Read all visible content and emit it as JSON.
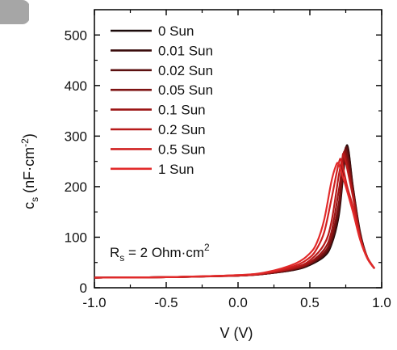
{
  "chart_data": {
    "type": "line",
    "xlabel": "V (V)",
    "ylabel": "cs (nF·cm⁻²)",
    "ylabel_parts": {
      "main": "c",
      "sub": "s",
      "unit_open": " (nF·cm",
      "sup": "-2",
      "unit_close": ")"
    },
    "xlim": [
      -1.0,
      1.0
    ],
    "ylim": [
      0,
      550
    ],
    "xticks": [
      -1.0,
      -0.5,
      0.0,
      0.5,
      1.0
    ],
    "xtick_labels": [
      "-1.0",
      "-0.5",
      "0.0",
      "0.5",
      "1.0"
    ],
    "yticks": [
      0,
      100,
      200,
      300,
      400,
      500
    ],
    "ytick_labels": [
      "0",
      "100",
      "200",
      "300",
      "400",
      "500"
    ],
    "grid": false,
    "legend_position": "top-center",
    "annotation": {
      "main": "R",
      "sub": "s",
      "rest": " = 2 Ohm·cm",
      "sup": "2"
    },
    "corner_mark": "panel-tab-grey",
    "series": [
      {
        "name": "0 Sun",
        "color": "#1a0a0a",
        "points": [
          [
            -1.0,
            20
          ],
          [
            -0.5,
            21
          ],
          [
            0.0,
            24
          ],
          [
            0.2,
            28
          ],
          [
            0.4,
            36
          ],
          [
            0.5,
            45
          ],
          [
            0.6,
            62
          ],
          [
            0.65,
            85
          ],
          [
            0.7,
            140
          ],
          [
            0.73,
            215
          ],
          [
            0.76,
            282
          ],
          [
            0.8,
            200
          ],
          [
            0.85,
            110
          ],
          [
            0.9,
            60
          ],
          [
            0.95,
            38
          ]
        ]
      },
      {
        "name": "0.01 Sun",
        "color": "#3a0c0c",
        "points": [
          [
            -1.0,
            20
          ],
          [
            -0.5,
            21
          ],
          [
            0.0,
            24
          ],
          [
            0.2,
            28
          ],
          [
            0.4,
            36
          ],
          [
            0.5,
            46
          ],
          [
            0.6,
            64
          ],
          [
            0.65,
            88
          ],
          [
            0.7,
            145
          ],
          [
            0.73,
            220
          ],
          [
            0.76,
            280
          ],
          [
            0.8,
            198
          ],
          [
            0.85,
            108
          ],
          [
            0.9,
            60
          ],
          [
            0.95,
            38
          ]
        ]
      },
      {
        "name": "0.02 Sun",
        "color": "#5c1010",
        "points": [
          [
            -1.0,
            20
          ],
          [
            -0.5,
            21
          ],
          [
            0.0,
            24
          ],
          [
            0.2,
            28
          ],
          [
            0.4,
            37
          ],
          [
            0.5,
            47
          ],
          [
            0.6,
            66
          ],
          [
            0.65,
            92
          ],
          [
            0.7,
            152
          ],
          [
            0.73,
            226
          ],
          [
            0.755,
            278
          ],
          [
            0.8,
            195
          ],
          [
            0.85,
            106
          ],
          [
            0.9,
            60
          ],
          [
            0.95,
            38
          ]
        ]
      },
      {
        "name": "0.05 Sun",
        "color": "#7d1212",
        "points": [
          [
            -1.0,
            20
          ],
          [
            -0.5,
            21
          ],
          [
            0.0,
            24
          ],
          [
            0.2,
            28
          ],
          [
            0.4,
            38
          ],
          [
            0.5,
            48
          ],
          [
            0.6,
            70
          ],
          [
            0.65,
            98
          ],
          [
            0.7,
            165
          ],
          [
            0.73,
            235
          ],
          [
            0.75,
            272
          ],
          [
            0.8,
            190
          ],
          [
            0.85,
            104
          ],
          [
            0.9,
            60
          ],
          [
            0.95,
            38
          ]
        ]
      },
      {
        "name": "0.1 Sun",
        "color": "#9c1515",
        "points": [
          [
            -1.0,
            20
          ],
          [
            -0.5,
            21
          ],
          [
            0.0,
            24
          ],
          [
            0.2,
            29
          ],
          [
            0.4,
            39
          ],
          [
            0.5,
            50
          ],
          [
            0.6,
            76
          ],
          [
            0.65,
            110
          ],
          [
            0.7,
            190
          ],
          [
            0.73,
            250
          ],
          [
            0.745,
            265
          ],
          [
            0.8,
            185
          ],
          [
            0.85,
            102
          ],
          [
            0.9,
            60
          ],
          [
            0.95,
            38
          ]
        ]
      },
      {
        "name": "0.2 Sun",
        "color": "#b81a1a",
        "points": [
          [
            -1.0,
            20
          ],
          [
            -0.5,
            21
          ],
          [
            0.0,
            24
          ],
          [
            0.2,
            29
          ],
          [
            0.4,
            41
          ],
          [
            0.5,
            54
          ],
          [
            0.6,
            86
          ],
          [
            0.65,
            130
          ],
          [
            0.7,
            220
          ],
          [
            0.725,
            255
          ],
          [
            0.74,
            260
          ],
          [
            0.8,
            180
          ],
          [
            0.85,
            100
          ],
          [
            0.9,
            60
          ],
          [
            0.95,
            38
          ]
        ]
      },
      {
        "name": "0.5 Sun",
        "color": "#d02020",
        "points": [
          [
            -1.0,
            20
          ],
          [
            -0.5,
            21
          ],
          [
            0.0,
            25
          ],
          [
            0.2,
            30
          ],
          [
            0.4,
            44
          ],
          [
            0.5,
            60
          ],
          [
            0.55,
            78
          ],
          [
            0.6,
            110
          ],
          [
            0.65,
            175
          ],
          [
            0.7,
            245
          ],
          [
            0.72,
            250
          ],
          [
            0.76,
            200
          ],
          [
            0.8,
            160
          ],
          [
            0.85,
            98
          ],
          [
            0.9,
            60
          ],
          [
            0.95,
            38
          ]
        ]
      },
      {
        "name": "1 Sun",
        "color": "#e22a2a",
        "points": [
          [
            -1.0,
            20
          ],
          [
            -0.5,
            21
          ],
          [
            0.0,
            25
          ],
          [
            0.2,
            31
          ],
          [
            0.4,
            48
          ],
          [
            0.5,
            68
          ],
          [
            0.55,
            90
          ],
          [
            0.6,
            135
          ],
          [
            0.65,
            210
          ],
          [
            0.68,
            240
          ],
          [
            0.7,
            245
          ],
          [
            0.74,
            210
          ],
          [
            0.8,
            150
          ],
          [
            0.85,
            95
          ],
          [
            0.9,
            58
          ],
          [
            0.95,
            38
          ]
        ]
      }
    ]
  }
}
